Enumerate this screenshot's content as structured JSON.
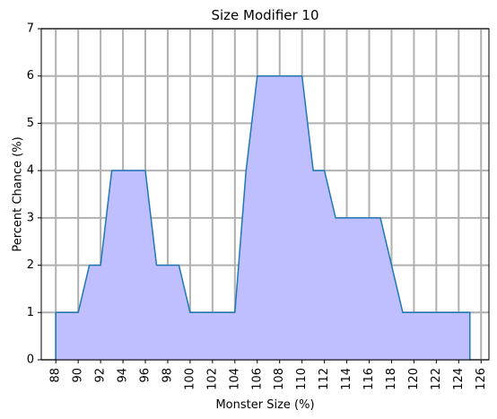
{
  "chart_data": {
    "type": "area",
    "title": "Size Modifier 10",
    "xlabel": "Monster Size (%)",
    "ylabel": "Percent Chance (%)",
    "xlim": [
      86.7,
      126.7
    ],
    "ylim": [
      0,
      7
    ],
    "xticks": [
      88,
      90,
      92,
      94,
      96,
      98,
      100,
      102,
      104,
      106,
      108,
      110,
      112,
      114,
      116,
      118,
      120,
      122,
      124,
      126
    ],
    "xtick_labels": [
      "88",
      "90",
      "92",
      "94",
      "96",
      "98",
      "100",
      "102",
      "104",
      "106",
      "108",
      "110",
      "112",
      "114",
      "116",
      "118",
      "120",
      "122",
      "124",
      "126"
    ],
    "yticks": [
      0,
      1,
      2,
      3,
      4,
      5,
      6,
      7
    ],
    "ytick_labels": [
      "0",
      "1",
      "2",
      "3",
      "4",
      "5",
      "6",
      "7"
    ],
    "grid": true,
    "colors": {
      "line": "#1f77b4",
      "fill": "#bfbfff",
      "grid": "#b0b0b0",
      "axes": "#000000"
    },
    "series": [
      {
        "x": [
          88,
          88,
          90,
          91,
          92,
          93,
          94,
          95,
          96,
          97,
          98,
          99,
          100,
          101,
          102,
          103,
          104,
          105,
          106,
          107,
          108,
          109,
          110,
          111,
          112,
          113,
          114,
          115,
          116,
          117,
          118,
          119,
          120,
          121,
          122,
          123,
          124,
          125,
          125
        ],
        "y": [
          0,
          1,
          1,
          2,
          2,
          4,
          4,
          4,
          4,
          2,
          2,
          2,
          1,
          1,
          1,
          1,
          1,
          4,
          6,
          6,
          6,
          6,
          6,
          4,
          4,
          3,
          3,
          3,
          3,
          3,
          2,
          1,
          1,
          1,
          1,
          1,
          1,
          1,
          0
        ]
      }
    ]
  }
}
